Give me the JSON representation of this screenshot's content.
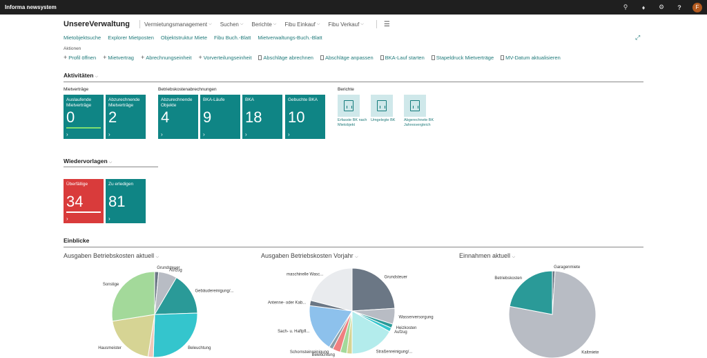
{
  "app": {
    "name": "Informa newsystem",
    "avatar_initial": "F"
  },
  "nav": {
    "title": "UnsereVerwaltung",
    "items": [
      "Vermietungsmanagement",
      "Suchen",
      "Berichte",
      "Fibu Einkauf",
      "Fibu Verkauf"
    ]
  },
  "links": [
    "Mietobjektsuche",
    "Explorer Mietposten",
    "Objektstruktur Miete",
    "Fibu Buch.-Blatt",
    "Mietverwaltungs-Buch.-Blatt"
  ],
  "actions": {
    "label": "Aktionen",
    "items": [
      {
        "label": "Profil öffnen",
        "icon": "plus"
      },
      {
        "label": "Mietvertrag",
        "icon": "plus"
      },
      {
        "label": "Abrechnungseinheit",
        "icon": "plus"
      },
      {
        "label": "Vorverteilungseinheit",
        "icon": "plus"
      },
      {
        "label": "Abschläge abrechnen",
        "icon": "doc"
      },
      {
        "label": "Abschläge anpassen",
        "icon": "doc"
      },
      {
        "label": "BKA-Lauf starten",
        "icon": "doc"
      },
      {
        "label": "Stapeldruck Mietverträge",
        "icon": "doc"
      },
      {
        "label": "MV-Datum aktualisieren",
        "icon": "doc"
      }
    ]
  },
  "aktivitaeten": {
    "title": "Aktivitäten",
    "groups": {
      "mietvertraege": "Mietverträge",
      "bka": "Betriebskostenabrechnungen",
      "berichte": "Berichte"
    },
    "tiles": [
      {
        "label": "Auslaufende Mietverträge",
        "value": "0"
      },
      {
        "label": "Abzurechnende Mietverträge",
        "value": "2"
      },
      {
        "label": "Abzurechnende Objekte",
        "value": "4"
      },
      {
        "label": "BKA-Läufe",
        "value": "9"
      },
      {
        "label": "BKA",
        "value": "18"
      },
      {
        "label": "Gebuchte BKA",
        "value": "10"
      }
    ],
    "reports": [
      "Erfasste BK nach Mietobjekt",
      "Umgelegte BK",
      "Abgerechnete BK Jahresvergleich"
    ]
  },
  "wiedervorlagen": {
    "title": "Wiedervorlagen",
    "tiles": [
      {
        "label": "Überfällige",
        "value": "34"
      },
      {
        "label": "Zu erledigen",
        "value": "81"
      }
    ]
  },
  "einblicke": {
    "title": "Einblicke",
    "charts": [
      {
        "title": "Ausgaben Betriebskosten aktuell",
        "slices": [
          {
            "label": "Grundsteuer",
            "value": 1.5,
            "color": "#6b7785"
          },
          {
            "label": "Aufzug",
            "value": 7,
            "color": "#b8bcc4"
          },
          {
            "label": "Gebäudereinigung/...",
            "value": 16,
            "color": "#2a9a98"
          },
          {
            "label": "Beleuchtung",
            "value": 26,
            "color": "#34c5cd"
          },
          {
            "label": "",
            "value": 2,
            "color": "#f0c8b8"
          },
          {
            "label": "Hausmeister",
            "value": 20,
            "color": "#d6d494"
          },
          {
            "label": "Sonstige",
            "value": 27.5,
            "color": "#a3d99a"
          }
        ]
      },
      {
        "title": "Ausgaben Betriebskosten Vorjahr",
        "slices": [
          {
            "label": "Grundsteuer",
            "value": 24,
            "color": "#6b7785"
          },
          {
            "label": "Wasserversorgung",
            "value": 6,
            "color": "#b8bcc4"
          },
          {
            "label": "Heizkosten",
            "value": 1.5,
            "color": "#2a9a98"
          },
          {
            "label": "Aufzug",
            "value": 1.5,
            "color": "#34c5cd"
          },
          {
            "label": "Straßenreinigung/...",
            "value": 17,
            "color": "#b3ecec"
          },
          {
            "label": "",
            "value": 2,
            "color": "#d6d494"
          },
          {
            "label": "",
            "value": 2.5,
            "color": "#a3d99a"
          },
          {
            "label": "Beleuchtung",
            "value": 3,
            "color": "#f08080"
          },
          {
            "label": "Schornsteinreinigung",
            "value": 1.5,
            "color": "#8aa0a8"
          },
          {
            "label": "Sach- u. Haftpfl...",
            "value": 18,
            "color": "#8dc1ec"
          },
          {
            "label": "Antenne- oder Kab...",
            "value": 2,
            "color": "#6b7785"
          },
          {
            "label": "maschinelle Wasc...",
            "value": 21,
            "color": "#e9ebee"
          }
        ]
      },
      {
        "title": "Einnahmen aktuell",
        "slices": [
          {
            "label": "Garagenmiete",
            "value": 1,
            "color": "#6b7785"
          },
          {
            "label": "Kaltmiete",
            "value": 77,
            "color": "#b8bcc4"
          },
          {
            "label": "Betriebskosten",
            "value": 22,
            "color": "#2a9a98"
          }
        ]
      }
    ]
  }
}
